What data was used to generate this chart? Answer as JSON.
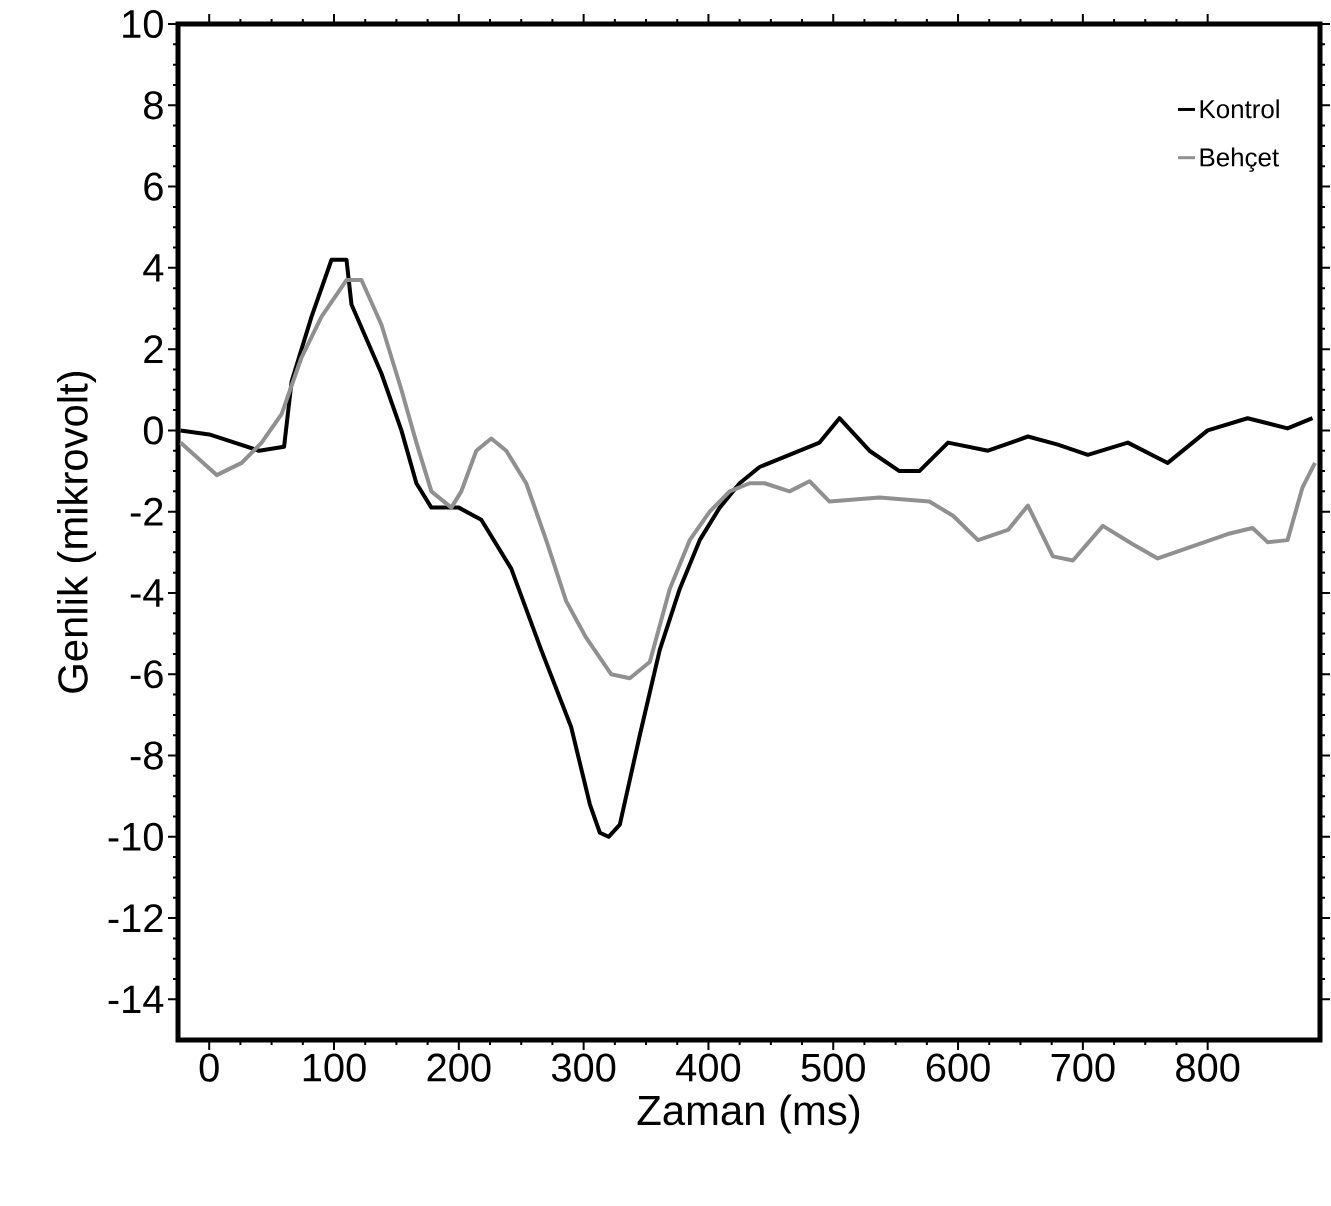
{
  "chart_data": {
    "type": "line",
    "xlabel": "Zaman (ms)",
    "ylabel": "Genlik (mikrovolt)",
    "xlim": [
      -25,
      890
    ],
    "ylim": [
      -15,
      10
    ],
    "xticks": [
      0,
      100,
      200,
      300,
      400,
      500,
      600,
      700,
      800
    ],
    "yticks": [
      -14,
      -12,
      -10,
      -8,
      -6,
      -4,
      -2,
      0,
      2,
      4,
      6,
      8,
      10
    ],
    "legend": "top right",
    "grid": false,
    "line_style": "solid",
    "series": [
      {
        "name": "Kontrol",
        "color": "#000000",
        "x": [
          -23,
          0,
          40,
          60,
          66,
          82,
          98,
          110,
          114,
          138,
          154,
          166,
          178,
          200,
          218,
          242,
          266,
          290,
          305,
          313,
          320,
          329,
          345,
          361,
          377,
          393,
          409,
          425,
          441,
          457,
          489,
          505,
          529,
          553,
          569,
          592,
          624,
          656,
          680,
          704,
          736,
          768,
          800,
          832,
          864,
          884
        ],
        "values": [
          0,
          -0.1,
          -0.5,
          -0.4,
          1.2,
          2.8,
          4.2,
          4.2,
          3.1,
          1.4,
          0,
          -1.3,
          -1.9,
          -1.9,
          -2.2,
          -3.4,
          -5.4,
          -7.3,
          -9.2,
          -9.9,
          -10,
          -9.7,
          -7.5,
          -5.4,
          -3.9,
          -2.7,
          -1.9,
          -1.3,
          -0.9,
          -0.7,
          -0.3,
          0.3,
          -0.5,
          -1,
          -1,
          -0.3,
          -0.5,
          -0.15,
          -0.35,
          -0.6,
          -0.3,
          -0.8,
          0,
          0.3,
          0.05,
          0.3
        ]
      },
      {
        "name": "Behçet",
        "color": "#909090",
        "x": [
          -23,
          6,
          26,
          42,
          58,
          74,
          90,
          110,
          122,
          138,
          154,
          166,
          178,
          194,
          202,
          214,
          226,
          238,
          254,
          270,
          286,
          302,
          322,
          337,
          353,
          369,
          385,
          401,
          417,
          433,
          445,
          465,
          481,
          497,
          537,
          577,
          596,
          616,
          640,
          656,
          676,
          692,
          716,
          740,
          760,
          788,
          816,
          836,
          848,
          864,
          876,
          886
        ],
        "values": [
          -0.3,
          -1.1,
          -0.8,
          -0.3,
          0.4,
          1.8,
          2.8,
          3.7,
          3.7,
          2.6,
          1,
          -0.3,
          -1.5,
          -1.9,
          -1.5,
          -0.5,
          -0.2,
          -0.5,
          -1.3,
          -2.7,
          -4.2,
          -5.1,
          -6,
          -6.1,
          -5.7,
          -3.9,
          -2.7,
          -2,
          -1.5,
          -1.3,
          -1.3,
          -1.5,
          -1.25,
          -1.75,
          -1.65,
          -1.75,
          -2.1,
          -2.7,
          -2.45,
          -1.85,
          -3.1,
          -3.2,
          -2.35,
          -2.8,
          -3.15,
          -2.85,
          -2.55,
          -2.4,
          -2.75,
          -2.7,
          -1.4,
          -0.8
        ]
      }
    ]
  }
}
